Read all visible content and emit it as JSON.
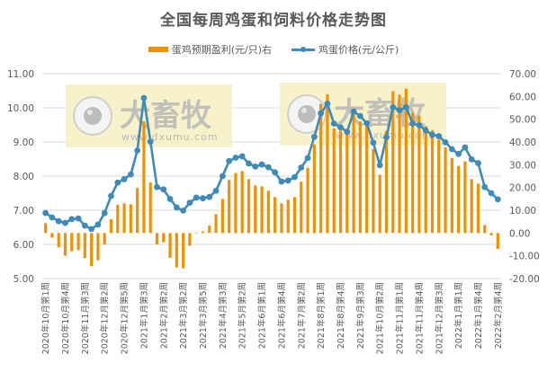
{
  "chart_data": {
    "type": "bar+line",
    "title": "全国每周鸡蛋和饲料价格走势图",
    "legend": [
      {
        "name": "蛋鸡预期盈利(元/只)右",
        "kind": "bar",
        "color": "#f29100"
      },
      {
        "name": "鸡蛋价格(元/公斤)",
        "kind": "line",
        "color": "#3d8bb8"
      }
    ],
    "legend_position": "top",
    "grid": true,
    "left_axis": {
      "min": 5,
      "max": 11,
      "step": 1,
      "ticks": [
        "11.00",
        "10.00",
        "9.00",
        "8.00",
        "7.00",
        "6.00",
        "5.00"
      ]
    },
    "right_axis": {
      "min": -20,
      "max": 70,
      "step": 10,
      "ticks": [
        "70.00",
        "60.00",
        "50.00",
        "40.00",
        "30.00",
        "20.00",
        "10.00",
        "0.00",
        "-10.00",
        "-20.00"
      ]
    },
    "x_tick_labels": [
      "2020年10月第1周",
      "2020年10月第4周",
      "2020年11月第3周",
      "2020年12月第2周",
      "2020年12月第5周",
      "2021年1月第3周",
      "2021年2月第2周",
      "2021年3月第2周",
      "2021年3月第5周",
      "2021年4月第3周",
      "2021年5月第2周",
      "2021年6月第1周",
      "2021年6月第4周",
      "2021年7月第2周",
      "2021年8月第1周",
      "2021年8月第4周",
      "2021年9月第3周",
      "2021年10月第2周",
      "2021年11月第1周",
      "2021年11月第4周",
      "2021年12月第3周",
      "2022年1月第1周",
      "2022年1月第4周",
      "2022年2月第4周"
    ],
    "x_tick_every": 3,
    "series": [
      {
        "name": "蛋鸡预期盈利(元/只)右",
        "axis": "right",
        "type": "bar",
        "values": [
          4.3,
          -2,
          -6.3,
          -10,
          -8,
          -7.5,
          -11,
          -14.6,
          -12,
          -5,
          6,
          12.4,
          13,
          12.6,
          19.8,
          49,
          22.2,
          -5,
          -4.1,
          -10.9,
          -15.1,
          -15.5,
          -5.6,
          0,
          0.7,
          3.3,
          8.3,
          15,
          23.3,
          26.3,
          27.2,
          23.7,
          20.9,
          20.5,
          18.6,
          15.8,
          13,
          14.6,
          15.8,
          22.6,
          28.6,
          38.9,
          56.7,
          60.9,
          46,
          45,
          43.8,
          54,
          49,
          48.3,
          37,
          25.6,
          45,
          62.3,
          60.8,
          63.4,
          52.9,
          51.6,
          47,
          45.2,
          41,
          37.7,
          33,
          29.5,
          31.5,
          23.7,
          21.7,
          3.5,
          -1,
          -7
        ]
      },
      {
        "name": "鸡蛋价格(元/公斤)",
        "axis": "left",
        "type": "line",
        "values": [
          6.92,
          6.79,
          6.68,
          6.63,
          6.74,
          6.76,
          6.55,
          6.45,
          6.58,
          6.92,
          7.42,
          7.81,
          7.91,
          8.05,
          8.75,
          10.29,
          9.01,
          7.68,
          7.61,
          7.33,
          7.08,
          6.99,
          7.22,
          7.37,
          7.35,
          7.39,
          7.57,
          8.0,
          8.44,
          8.54,
          8.58,
          8.37,
          8.28,
          8.34,
          8.26,
          8.11,
          7.84,
          7.87,
          7.97,
          8.25,
          8.53,
          9.15,
          9.84,
          10.12,
          9.54,
          9.43,
          9.3,
          9.89,
          9.76,
          9.55,
          8.98,
          8.32,
          9.14,
          10.02,
          9.93,
          10.02,
          9.54,
          9.49,
          9.34,
          9.21,
          9.17,
          8.99,
          8.79,
          8.65,
          8.84,
          8.49,
          8.38,
          7.68,
          7.5,
          7.32
        ]
      }
    ]
  },
  "watermark": {
    "brand": "大畜牧",
    "url": "www.dxumu.com"
  }
}
